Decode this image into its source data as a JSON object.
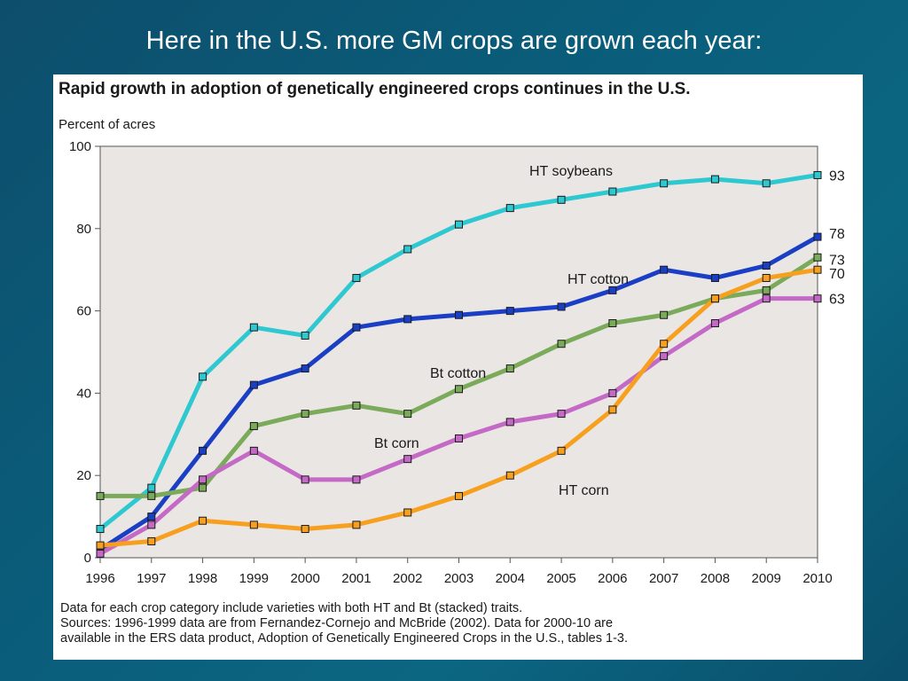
{
  "slide": {
    "title": "Here in the U.S. more GM crops are grown each year:"
  },
  "notes": [
    "Data for each crop category include varieties with both HT and Bt (stacked) traits.",
    "Sources: 1996-1999 data are from Fernandez-Cornejo and McBride (2002). Data for 2000-10 are",
    "available in the ERS data product, Adoption of Genetically Engineered Crops in the U.S., tables 1-3."
  ],
  "colors": {
    "plot_bg": "#e9e6e4",
    "ht_soybeans": "#2ec8d0",
    "ht_cotton": "#1a3fc4",
    "bt_cotton": "#7aaa5a",
    "bt_corn": "#c46ac6",
    "ht_corn": "#f7a020"
  },
  "chart_data": {
    "type": "line",
    "title": "Rapid growth in adoption of genetically engineered crops continues in the U.S.",
    "ylabel": "Percent of acres",
    "xlabel": "",
    "ylim": [
      0,
      100
    ],
    "yticks": [
      0,
      20,
      40,
      60,
      80,
      100
    ],
    "x": [
      1996,
      1997,
      1998,
      1999,
      2000,
      2001,
      2002,
      2003,
      2004,
      2005,
      2006,
      2007,
      2008,
      2009,
      2010
    ],
    "grid": false,
    "series": [
      {
        "name": "HT soybeans",
        "key": "ht_soybeans",
        "end_label": "93",
        "values": [
          7,
          17,
          44,
          56,
          54,
          68,
          75,
          81,
          85,
          87,
          89,
          91,
          92,
          91,
          93
        ]
      },
      {
        "name": "HT cotton",
        "key": "ht_cotton",
        "end_label": "78",
        "values": [
          2,
          10,
          26,
          42,
          46,
          56,
          58,
          59,
          60,
          61,
          65,
          70,
          68,
          71,
          78
        ]
      },
      {
        "name": "Bt cotton",
        "key": "bt_cotton",
        "end_label": "73",
        "values": [
          15,
          15,
          17,
          32,
          35,
          37,
          35,
          41,
          46,
          52,
          57,
          59,
          63,
          65,
          73
        ]
      },
      {
        "name": "Bt corn",
        "key": "bt_corn",
        "end_label": "63",
        "values": [
          1,
          8,
          19,
          26,
          19,
          19,
          24,
          29,
          33,
          35,
          40,
          49,
          57,
          63,
          63
        ]
      },
      {
        "name": "HT corn",
        "key": "ht_corn",
        "end_label": "70",
        "values": [
          3,
          4,
          9,
          8,
          7,
          8,
          11,
          15,
          20,
          26,
          36,
          52,
          63,
          68,
          70
        ]
      }
    ]
  }
}
